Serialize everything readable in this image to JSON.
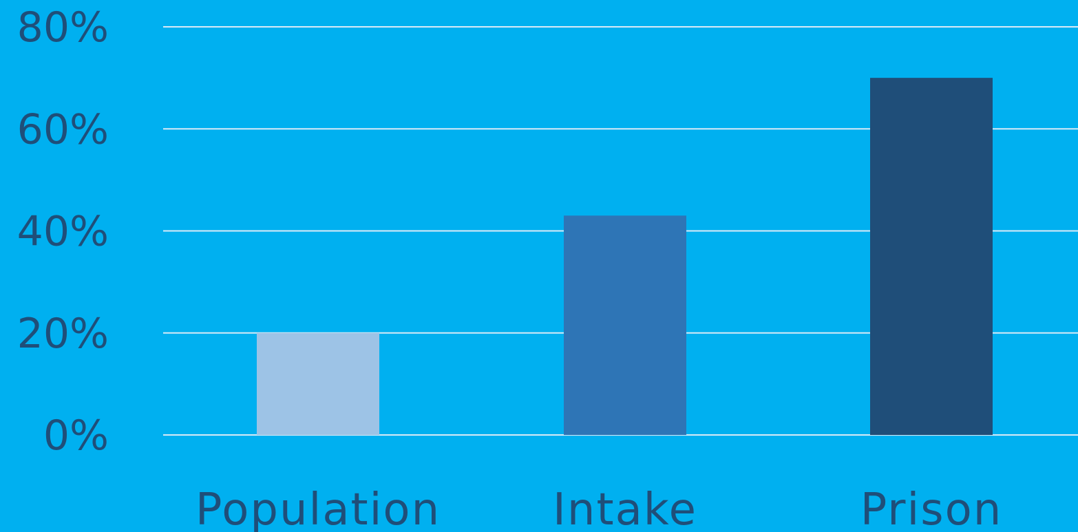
{
  "chart_data": {
    "type": "bar",
    "title": "",
    "xlabel": "",
    "ylabel": "",
    "categories": [
      "Population",
      "Intake",
      "Prison"
    ],
    "values": [
      20,
      43,
      70
    ],
    "unit": "%",
    "ylim": [
      0,
      80
    ],
    "yticks": [
      "0%",
      "20%",
      "40%",
      "60%",
      "80%"
    ],
    "grid": true,
    "legend": "none",
    "colors": {
      "background": "#00b0f0",
      "gridline": "#d9eaf7",
      "text": "#1f4e79",
      "bars": [
        "#9dc3e6",
        "#2e75b6",
        "#1f4e79"
      ]
    }
  }
}
